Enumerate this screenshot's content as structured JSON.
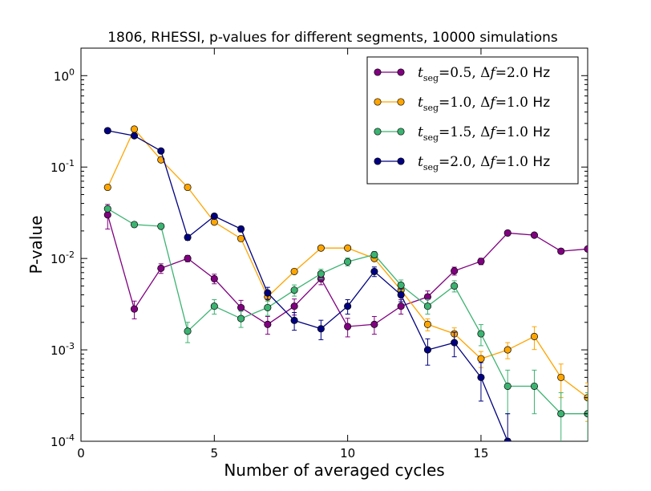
{
  "chart_data": {
    "type": "line",
    "title": "1806, RHESSI, p-values for different segments, 10000 simulations",
    "xlabel": "Number of averaged cycles",
    "ylabel": "P-value",
    "xlim": [
      0,
      19
    ],
    "ylim": [
      0.0001,
      2
    ],
    "yscale": "log",
    "x_ticks": [
      0,
      5,
      10,
      15
    ],
    "x_tick_labels": [
      "0",
      "5",
      "10",
      "15"
    ],
    "y_ticks": [
      0.0001,
      0.001,
      0.01,
      0.1,
      1
    ],
    "y_tick_labels": [
      {
        "base": "10",
        "exp": "-4"
      },
      {
        "base": "10",
        "exp": "-3"
      },
      {
        "base": "10",
        "exp": "-2"
      },
      {
        "base": "10",
        "exp": "-1"
      },
      {
        "base": "10",
        "exp": "0"
      }
    ],
    "grid": false,
    "legend_position": "top-right",
    "legend_subscript": "seg",
    "series": [
      {
        "tseg": "0.5",
        "df": "2.0",
        "unit": "Hz",
        "color": "#800080",
        "x": [
          1,
          2,
          3,
          4,
          5,
          6,
          7,
          8,
          9,
          10,
          11,
          12,
          13,
          14,
          15,
          16,
          17,
          18,
          19
        ],
        "y": [
          0.03,
          0.0028,
          0.0078,
          0.01,
          0.006,
          0.0029,
          0.0019,
          0.003,
          0.006,
          0.0018,
          0.0019,
          0.003,
          0.0038,
          0.0073,
          0.0093,
          0.019,
          0.018,
          0.012,
          0.0127
        ],
        "err": [
          0.3,
          0.22,
          0.12,
          0.08,
          0.12,
          0.2,
          0.22,
          0.2,
          0.14,
          0.23,
          0.22,
          0.18,
          0.16,
          0.1,
          0.08,
          0.05,
          0.05,
          0.06,
          0.06
        ]
      },
      {
        "tseg": "1.0",
        "df": "1.0",
        "unit": "Hz",
        "color": "#FFA500",
        "x": [
          1,
          2,
          3,
          4,
          5,
          6,
          7,
          8,
          9,
          10,
          11,
          12,
          13,
          14,
          15,
          16,
          17,
          18,
          19
        ],
        "y": [
          0.06,
          0.26,
          0.12,
          0.06,
          0.025,
          0.0165,
          0.0038,
          0.0072,
          0.013,
          0.013,
          0.01,
          0.0045,
          0.0019,
          0.0015,
          0.0008,
          0.001,
          0.0014,
          0.0005,
          0.0003
        ],
        "err": [
          0.02,
          0.02,
          0.02,
          0.02,
          0.03,
          0.04,
          0.1,
          0.06,
          0.05,
          0.05,
          0.06,
          0.09,
          0.15,
          0.16,
          0.2,
          0.2,
          0.28,
          0.4,
          0.45
        ]
      },
      {
        "tseg": "1.5",
        "df": "1.0",
        "unit": "Hz",
        "color": "#3CB371",
        "x": [
          1,
          2,
          3,
          4,
          5,
          6,
          7,
          8,
          9,
          10,
          11,
          12,
          13,
          14,
          15,
          16,
          17,
          18,
          19
        ],
        "y": [
          0.035,
          0.0235,
          0.0225,
          0.0016,
          0.003,
          0.0022,
          0.0029,
          0.0045,
          0.0068,
          0.0092,
          0.011,
          0.0051,
          0.003,
          0.005,
          0.0015,
          0.0004,
          0.0004,
          0.0002,
          0.0002
        ],
        "err": [
          0.03,
          0.04,
          0.04,
          0.25,
          0.18,
          0.2,
          0.18,
          0.14,
          0.12,
          0.1,
          0.08,
          0.14,
          0.18,
          0.14,
          0.26,
          0.5,
          0.5,
          0.7,
          0.7
        ]
      },
      {
        "tseg": "2.0",
        "df": "1.0",
        "unit": "Hz",
        "color": "#000080",
        "x": [
          1,
          2,
          3,
          4,
          5,
          6,
          7,
          8,
          9,
          10,
          11,
          12,
          13,
          14,
          15,
          16
        ],
        "y": [
          0.25,
          0.22,
          0.15,
          0.017,
          0.029,
          0.021,
          0.0042,
          0.0021,
          0.0017,
          0.003,
          0.0072,
          0.004,
          0.001,
          0.0012,
          0.0005,
          0.0001
        ],
        "err": [
          0.02,
          0.02,
          0.03,
          0.07,
          0.06,
          0.07,
          0.15,
          0.22,
          0.24,
          0.18,
          0.12,
          0.16,
          0.32,
          0.3,
          0.45,
          1.0
        ]
      }
    ]
  }
}
